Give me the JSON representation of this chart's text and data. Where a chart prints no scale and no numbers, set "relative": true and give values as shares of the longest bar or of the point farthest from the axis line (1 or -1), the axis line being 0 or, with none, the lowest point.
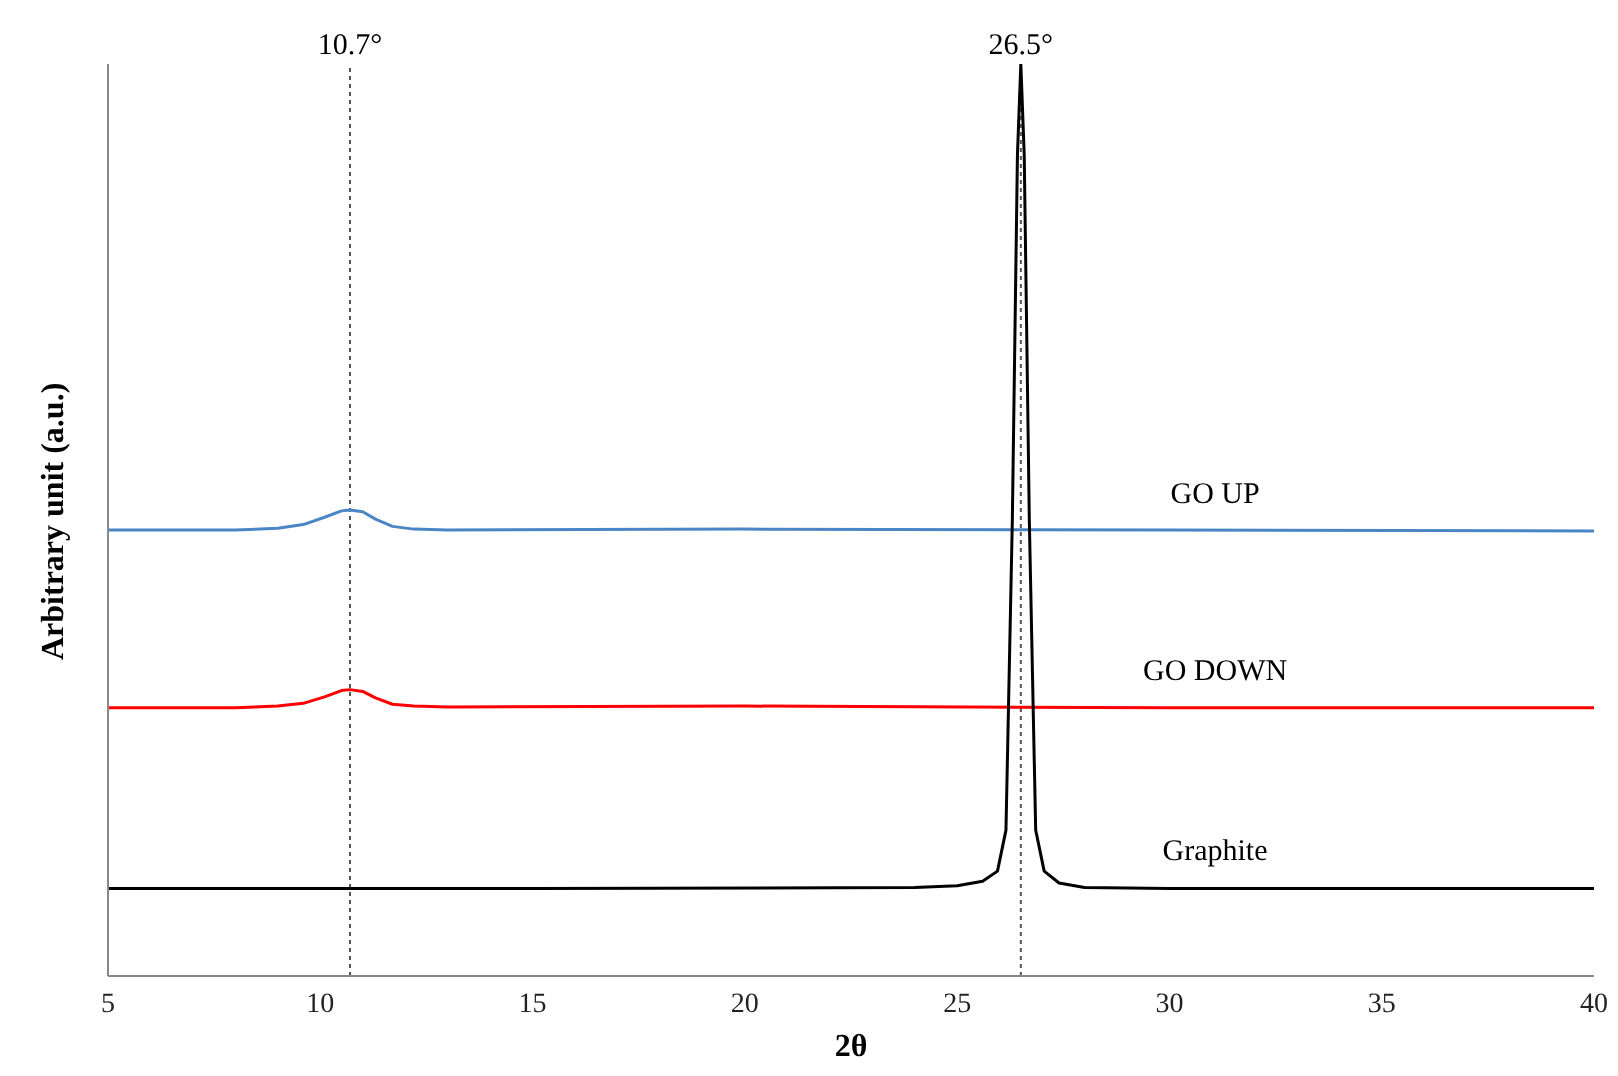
{
  "chart_data": {
    "type": "line",
    "relative": true,
    "xlabel": "2θ",
    "ylabel": "Arbitrary unit (a.u.)",
    "xlim": [
      5,
      40
    ],
    "xticks": [
      5,
      10,
      15,
      20,
      25,
      30,
      35,
      40
    ],
    "marker": "none",
    "line_style": "solid",
    "series": [
      {
        "name": "GO UP",
        "color": "#4a86c6",
        "x": [
          5,
          8,
          9,
          9.6,
          10.1,
          10.5,
          10.7,
          11,
          11.3,
          11.7,
          12.2,
          13,
          20,
          30,
          40
        ],
        "values": [
          0.489,
          0.489,
          0.491,
          0.495,
          0.503,
          0.51,
          0.511,
          0.509,
          0.501,
          0.493,
          0.49,
          0.489,
          0.49,
          0.489,
          0.488
        ]
      },
      {
        "name": "GO DOWN",
        "color": "#ff0000",
        "x": [
          5,
          8,
          9,
          9.6,
          10.1,
          10.5,
          10.7,
          11,
          11.3,
          11.7,
          12.2,
          13,
          20,
          30,
          40
        ],
        "values": [
          0.294,
          0.294,
          0.296,
          0.299,
          0.306,
          0.313,
          0.314,
          0.312,
          0.305,
          0.298,
          0.296,
          0.295,
          0.296,
          0.294,
          0.294
        ]
      },
      {
        "name": "Graphite",
        "color": "#000000",
        "x": [
          5,
          15,
          24,
          25,
          25.6,
          25.95,
          26.15,
          26.3,
          26.42,
          26.5,
          26.58,
          26.7,
          26.85,
          27.05,
          27.4,
          28,
          30,
          40
        ],
        "values": [
          0.096,
          0.096,
          0.097,
          0.099,
          0.104,
          0.115,
          0.16,
          0.5,
          0.9,
          1,
          0.9,
          0.5,
          0.16,
          0.115,
          0.102,
          0.097,
          0.096,
          0.096
        ]
      }
    ],
    "ref_lines": [
      {
        "axis": "x",
        "value": 10.7,
        "label": "10.7°",
        "line_style": "dotted",
        "color": "#555555"
      },
      {
        "axis": "x",
        "value": 26.5,
        "label": "26.5°",
        "line_style": "dotted",
        "color": "#555555"
      }
    ]
  }
}
